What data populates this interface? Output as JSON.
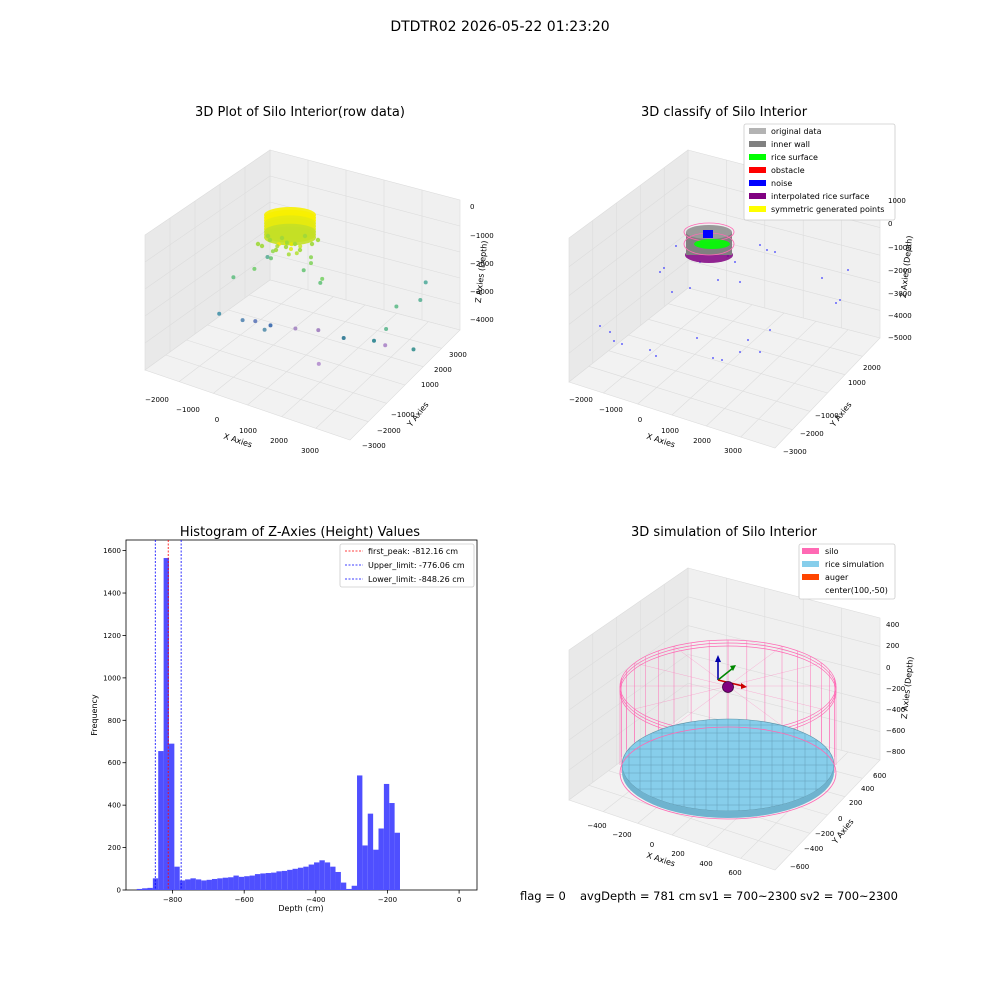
{
  "figure_title": "DTDTR02 2026-05-22 01:23:20",
  "status": {
    "flag": "flag = 0",
    "avg_depth": "avgDepth = 781 cm",
    "sv1": "sv1 = 700~2300",
    "sv2": "sv2 = 700~2300"
  },
  "colors": {
    "hist_bar": "#4f4fff",
    "first_peak": "#ff0000",
    "limit": "#0000ff",
    "silo": "#ff69b4",
    "rice": "#87ceeb",
    "auger": "#ff4500"
  },
  "chart_data": [
    {
      "type": "scatter3d",
      "title": "3D Plot of Silo Interior(row data)",
      "xlabel": "X Axies",
      "ylabel": "Y Axies",
      "zlabel": "Z Axies (Depth)",
      "x_ticks": [
        "−2000",
        "−1000",
        "0",
        "1000",
        "2000",
        "3000"
      ],
      "y_ticks": [
        "3000",
        "2000",
        "1000",
        "−1000",
        "−2000",
        "−3000"
      ],
      "z_ticks": [
        "0",
        "−1000",
        "−2000",
        "−3000",
        "−4000"
      ],
      "xlim": [
        -2500,
        3500
      ],
      "ylim": [
        -3200,
        3200
      ],
      "zlim": [
        -4500,
        200
      ],
      "points": [
        {
          "x": -300,
          "y": 200,
          "z": -700,
          "c": "#ffe600"
        },
        {
          "x": -200,
          "y": 0,
          "z": -720,
          "c": "#f2ea00"
        },
        {
          "x": -100,
          "y": -100,
          "z": -760,
          "c": "#e8e800"
        },
        {
          "x": 0,
          "y": 100,
          "z": -790,
          "c": "#dcec10"
        },
        {
          "x": 100,
          "y": -200,
          "z": -800,
          "c": "#c8e820"
        },
        {
          "x": -250,
          "y": -150,
          "z": -820,
          "c": "#bde22a"
        },
        {
          "x": -400,
          "y": 100,
          "z": -850,
          "c": "#a8dc34"
        },
        {
          "x": 200,
          "y": 150,
          "z": -830,
          "c": "#b4e030"
        },
        {
          "x": -350,
          "y": -300,
          "z": -900,
          "c": "#9ad83c"
        },
        {
          "x": 50,
          "y": 300,
          "z": -860,
          "c": "#a4dc36"
        },
        {
          "x": -700,
          "y": -200,
          "z": -1300,
          "c": "#8fd64a"
        },
        {
          "x": 300,
          "y": -400,
          "z": -1200,
          "c": "#86d44e"
        },
        {
          "x": 700,
          "y": 300,
          "z": -900,
          "c": "#7ed258"
        },
        {
          "x": 1200,
          "y": 600,
          "z": -1100,
          "c": "#74d060"
        },
        {
          "x": -900,
          "y": 400,
          "z": -1700,
          "c": "#6ccb66"
        },
        {
          "x": -1100,
          "y": -800,
          "z": -2000,
          "c": "#66c46c"
        },
        {
          "x": -200,
          "y": -900,
          "z": -2100,
          "c": "#62c270"
        },
        {
          "x": 400,
          "y": -700,
          "z": -2200,
          "c": "#5ebf76"
        },
        {
          "x": -1400,
          "y": 600,
          "z": -2100,
          "c": "#5cbc7c"
        },
        {
          "x": 2800,
          "y": -400,
          "z": -1900,
          "c": "#58b884"
        },
        {
          "x": 2900,
          "y": 300,
          "z": -2300,
          "c": "#56b48a"
        },
        {
          "x": 2700,
          "y": -1800,
          "z": -2400,
          "c": "#52ae90"
        },
        {
          "x": 2400,
          "y": -2600,
          "z": -2300,
          "c": "#4aa898"
        },
        {
          "x": -1600,
          "y": -1500,
          "z": -2500,
          "c": "#52aa92"
        },
        {
          "x": -2100,
          "y": 100,
          "z": -3900,
          "c": "#3a8ca4"
        },
        {
          "x": -1700,
          "y": -400,
          "z": -4200,
          "c": "#4a7fae"
        },
        {
          "x": -1500,
          "y": -700,
          "z": -4300,
          "c": "#5570b5"
        },
        {
          "x": -1000,
          "y": -600,
          "z": -4200,
          "c": "#2c5fa8"
        },
        {
          "x": -500,
          "y": -1000,
          "z": -4300,
          "c": "#a07fc0"
        },
        {
          "x": 0,
          "y": -1300,
          "z": -4300,
          "c": "#9a76bb"
        },
        {
          "x": 800,
          "y": -1200,
          "z": -4200,
          "c": "#1f6e8c"
        },
        {
          "x": 1400,
          "y": -1700,
          "z": -4300,
          "c": "#1c7c8a"
        },
        {
          "x": 1900,
          "y": -1400,
          "z": -4100,
          "c": "#a77fc6"
        },
        {
          "x": 2500,
          "y": -1800,
          "z": -4200,
          "c": "#2a8a88"
        },
        {
          "x": 1100,
          "y": 600,
          "z": -4100,
          "c": "#b088cc"
        },
        {
          "x": -600,
          "y": 400,
          "z": -3700,
          "c": "#4e8aa8"
        }
      ],
      "cylinder": {
        "radius": 550,
        "z_top": -650,
        "z_bottom": -900,
        "colors": [
          "#f7ef00",
          "#e4ea0f",
          "#c4e026"
        ]
      }
    },
    {
      "type": "scatter3d",
      "title": "3D classify of Silo Interior",
      "xlabel": "X Axies",
      "ylabel": "Y Axies",
      "zlabel": "Z Axies (Depth)",
      "x_ticks": [
        "−2000",
        "−1000",
        "0",
        "1000",
        "2000",
        "3000"
      ],
      "y_ticks": [
        "2000",
        "1000",
        "−1000",
        "−2000",
        "−3000"
      ],
      "z_ticks": [
        "1000",
        "0",
        "−1000",
        "−2000",
        "−3000",
        "−4000",
        "−5000"
      ],
      "legend": [
        {
          "label": "original data",
          "color": "#b3b3b3"
        },
        {
          "label": "inner wall",
          "color": "#808080"
        },
        {
          "label": "rice surface",
          "color": "#00ff00"
        },
        {
          "label": "obstacle",
          "color": "#ff0000"
        },
        {
          "label": "noise",
          "color": "#0000ff"
        },
        {
          "label": "interpolated rice surface",
          "color": "#800080"
        },
        {
          "label": "symmetric generated points",
          "color": "#ffff00"
        }
      ]
    },
    {
      "type": "bar",
      "title": "Histogram of Z-Axies (Height) Values",
      "xlabel": "Depth (cm)",
      "ylabel": "Frequency",
      "xlim": [
        -930,
        50
      ],
      "ylim": [
        0,
        1650
      ],
      "x_ticks": [
        -800,
        -600,
        -400,
        -200,
        0
      ],
      "x_tick_labels": [
        "−800",
        "−600",
        "−400",
        "−200",
        "0"
      ],
      "y_ticks": [
        0,
        200,
        400,
        600,
        800,
        1000,
        1200,
        1400,
        1600
      ],
      "y_tick_labels": [
        "0",
        "200",
        "400",
        "600",
        "800",
        "1000",
        "1200",
        "1400",
        "1600"
      ],
      "bin_start": -900,
      "bin_width": 15,
      "values": [
        5,
        8,
        10,
        55,
        655,
        1565,
        690,
        110,
        45,
        50,
        55,
        50,
        45,
        48,
        52,
        55,
        58,
        60,
        68,
        62,
        65,
        68,
        75,
        78,
        80,
        82,
        88,
        90,
        95,
        100,
        105,
        110,
        120,
        130,
        140,
        130,
        110,
        85,
        35,
        5,
        20,
        540,
        210,
        360,
        190,
        290,
        500,
        410,
        270
      ],
      "vlines": [
        {
          "x": -812.16,
          "label": "first_peak: -812.16 cm",
          "color": "#ff0000"
        },
        {
          "x": -776.06,
          "label": "Upper_limit: -776.06 cm",
          "color": "#0000ff"
        },
        {
          "x": -848.26,
          "label": "Lower_limit: -848.26 cm",
          "color": "#0000ff"
        }
      ]
    },
    {
      "type": "surface3d",
      "title": "3D simulation of Silo Interior",
      "xlabel": "X Axies",
      "ylabel": "Y Axies",
      "zlabel": "Z Axies (Depth)",
      "x_ticks": [
        "−400",
        "−200",
        "0",
        "200",
        "400",
        "600"
      ],
      "y_ticks": [
        "600",
        "400",
        "200",
        "0",
        "−200",
        "−400",
        "−600"
      ],
      "z_ticks": [
        "400",
        "200",
        "0",
        "−200",
        "−400",
        "−600",
        "−800"
      ],
      "silo": {
        "radius": 700,
        "z_top": 0,
        "z_bottom": -800
      },
      "rice": {
        "z": -780
      },
      "legend": [
        {
          "label": "silo",
          "color": "#ff69b4"
        },
        {
          "label": "rice simulation",
          "color": "#87ceeb"
        },
        {
          "label": "auger",
          "color": "#ff4500"
        },
        {
          "label": "center(100,-50)",
          "color": ""
        }
      ]
    }
  ]
}
